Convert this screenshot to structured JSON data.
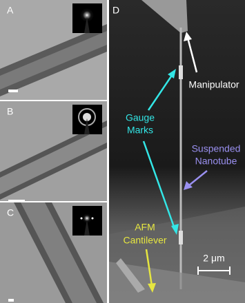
{
  "panel_labels": [
    "A",
    "B",
    "C",
    "D"
  ],
  "annotations": {
    "manipulator": "Manipulator",
    "gauge_marks": [
      "Gauge",
      "Marks"
    ],
    "suspended_nanotube": [
      "Suspended",
      "Nanotube"
    ],
    "afm_cantilever": [
      "AFM",
      "Cantilever"
    ],
    "scale_bar": "2 μm"
  }
}
